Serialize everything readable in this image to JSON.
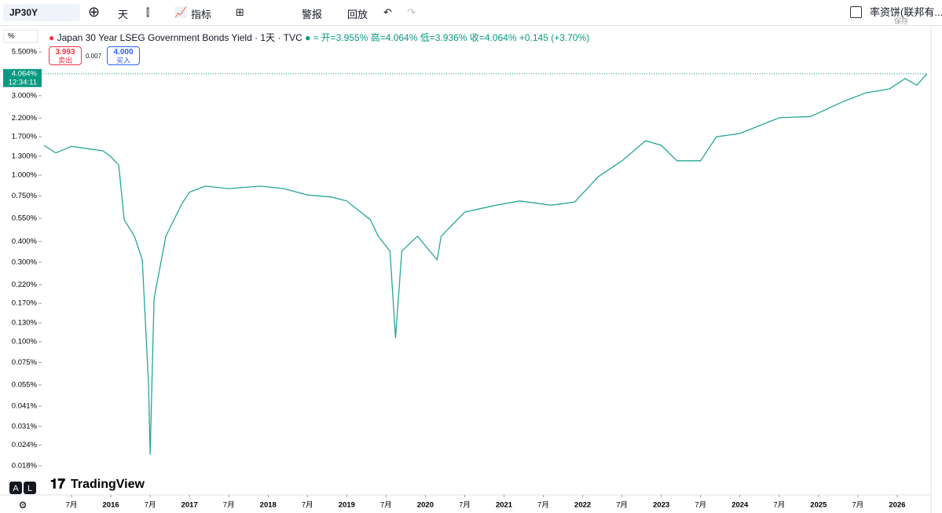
{
  "toolbar": {
    "symbol": "JP30Y",
    "interval": "天",
    "indicators": "指标",
    "alert": "警报",
    "replay": "回放",
    "account": "率资饼(联邦有...",
    "save": "保存"
  },
  "legend": {
    "title": "Japan 30 Year LSEG Government Bonds Yield · 1天 · TVC",
    "open": "开=3.955%",
    "high": "高=4.064%",
    "low": "低=3.936%",
    "close": "收=4.064%",
    "change": "+0.145 (+3.70%)"
  },
  "trade": {
    "sell_price": "3.993",
    "sell": "卖出",
    "spread": "0.007",
    "buy_price": "4.000",
    "buy": "买入"
  },
  "unit": "%",
  "logo": "TradingView",
  "scale_a": "A",
  "scale_l": "L",
  "clock": "12:34:11",
  "chart_data": {
    "type": "line",
    "log": true,
    "color": "#26a69a",
    "last": {
      "value": 4.064,
      "label": "4.064%"
    },
    "x": [
      2015.15,
      2015.3,
      2015.5,
      2015.9,
      2016.0,
      2016.1,
      2016.17,
      2016.3,
      2016.4,
      2016.48,
      2016.5,
      2016.55,
      2016.7,
      2016.9,
      2017.0,
      2017.2,
      2017.5,
      2017.9,
      2018.2,
      2018.5,
      2018.8,
      2019.0,
      2019.3,
      2019.4,
      2019.55,
      2019.62,
      2019.7,
      2019.9,
      2020.15,
      2020.2,
      2020.5,
      2020.9,
      2021.2,
      2021.6,
      2021.9,
      2022.2,
      2022.5,
      2022.8,
      2023.0,
      2023.2,
      2023.5,
      2023.7,
      2024.0,
      2024.5,
      2024.9,
      2025.3,
      2025.6,
      2025.9,
      2026.1,
      2026.25,
      2026.38
    ],
    "values": [
      1.51,
      1.36,
      1.49,
      1.4,
      1.29,
      1.15,
      0.54,
      0.43,
      0.31,
      0.055,
      0.021,
      0.182,
      0.43,
      0.67,
      0.79,
      0.86,
      0.83,
      0.86,
      0.83,
      0.76,
      0.74,
      0.7,
      0.54,
      0.43,
      0.35,
      0.105,
      0.35,
      0.43,
      0.31,
      0.43,
      0.6,
      0.66,
      0.7,
      0.66,
      0.69,
      0.98,
      1.22,
      1.61,
      1.51,
      1.22,
      1.22,
      1.7,
      1.78,
      2.21,
      2.25,
      2.75,
      3.12,
      3.29,
      3.8,
      3.47,
      4.064
    ],
    "xlim": [
      2015.14,
      2026.38
    ],
    "xticks": [
      {
        "value": 2015.5,
        "label": "7月"
      },
      {
        "value": 2016,
        "label": "2016"
      },
      {
        "value": 2016.5,
        "label": "7月"
      },
      {
        "value": 2017,
        "label": "2017"
      },
      {
        "value": 2017.5,
        "label": "7月"
      },
      {
        "value": 2018,
        "label": "2018"
      },
      {
        "value": 2018.5,
        "label": "7月"
      },
      {
        "value": 2019,
        "label": "2019"
      },
      {
        "value": 2019.5,
        "label": "7月"
      },
      {
        "value": 2020,
        "label": "2020"
      },
      {
        "value": 2020.5,
        "label": "7月"
      },
      {
        "value": 2021,
        "label": "2021"
      },
      {
        "value": 2021.5,
        "label": "7月"
      },
      {
        "value": 2022,
        "label": "2022"
      },
      {
        "value": 2022.5,
        "label": "7月"
      },
      {
        "value": 2023,
        "label": "2023"
      },
      {
        "value": 2023.5,
        "label": "7月"
      },
      {
        "value": 2024,
        "label": "2024"
      },
      {
        "value": 2024.5,
        "label": "7月"
      },
      {
        "value": 2025,
        "label": "2025"
      },
      {
        "value": 2025.5,
        "label": "7月"
      },
      {
        "value": 2026,
        "label": "2026"
      }
    ],
    "ylim": [
      0.0123,
      6.13
    ],
    "yticks": [
      {
        "value": 5.5,
        "label": "5.500%"
      },
      {
        "value": 3,
        "label": "3.000%"
      },
      {
        "value": 2.2,
        "label": "2.200%"
      },
      {
        "value": 1.7,
        "label": "1.700%"
      },
      {
        "value": 1.3,
        "label": "1.300%"
      },
      {
        "value": 1,
        "label": "1.000%"
      },
      {
        "value": 0.75,
        "label": "0.750%"
      },
      {
        "value": 0.55,
        "label": "0.550%"
      },
      {
        "value": 0.4,
        "label": "0.400%"
      },
      {
        "value": 0.3,
        "label": "0.300%"
      },
      {
        "value": 0.22,
        "label": "0.220%"
      },
      {
        "value": 0.17,
        "label": "0.170%"
      },
      {
        "value": 0.13,
        "label": "0.130%"
      },
      {
        "value": 0.1,
        "label": "0.100%"
      },
      {
        "value": 0.075,
        "label": "0.075%"
      },
      {
        "value": 0.055,
        "label": "0.055%"
      },
      {
        "value": 0.041,
        "label": "0.041%"
      },
      {
        "value": 0.031,
        "label": "0.031%"
      },
      {
        "value": 0.024,
        "label": "0.024%"
      },
      {
        "value": 0.018,
        "label": "0.018%"
      }
    ]
  }
}
